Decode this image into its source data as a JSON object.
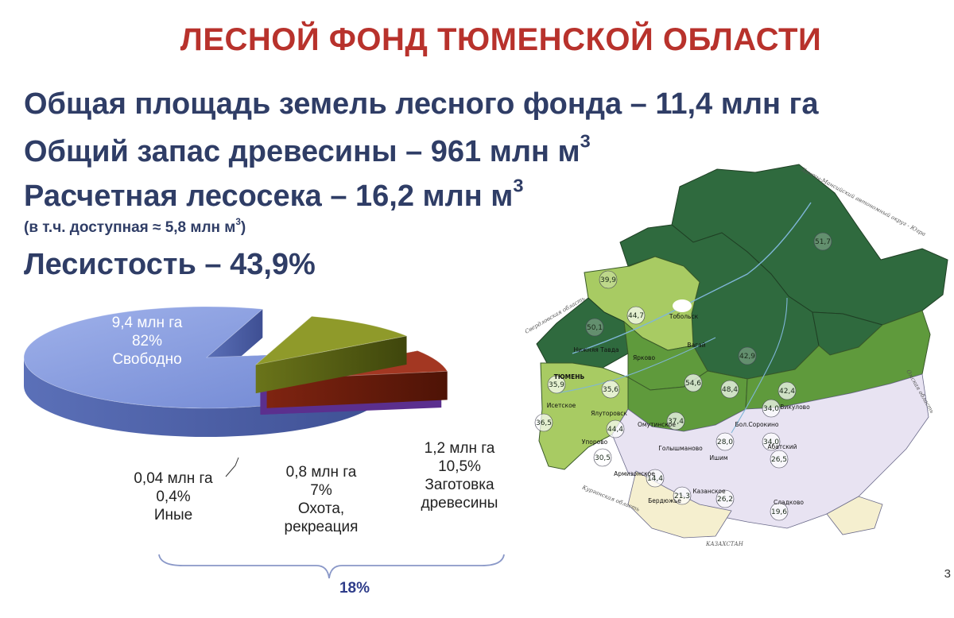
{
  "title": "ЛЕСНОЙ ФОНД ТЮМЕНСКОЙ ОБЛАСТИ",
  "stats": {
    "area": "Общая площадь земель лесного фонда – 11,4 млн га",
    "stock_text": "Общий запас древесины – 961 млн м",
    "stock_sup": "3",
    "cut_text": "Расчетная лесосека – 16,2 млн м",
    "cut_sup": "3",
    "cut_note_text": "(в т.ч. доступная ≈ 5,8 млн м",
    "cut_note_sup": "3",
    "cut_note_close": ")",
    "cover": "Лесистость – 43,9%"
  },
  "chart_data": {
    "type": "pie",
    "style": "3d-exploded",
    "unit": "млн га",
    "slices": [
      {
        "label_line1": "9,4 млн га",
        "label_line2": "82%",
        "label_line3": "Свободно",
        "value": 9.4,
        "percent": 82,
        "color": "#7e95dc"
      },
      {
        "label_line1": "1,2 млн га",
        "label_line2": "10,5%",
        "label_line3": "Заготовка",
        "label_line4": "древесины",
        "value": 1.2,
        "percent": 10.5,
        "color": "#8f9a2a"
      },
      {
        "label_line1": "0,8 млн га",
        "label_line2": "7%",
        "label_line3": "Охота,",
        "label_line4": "рекреация",
        "value": 0.8,
        "percent": 7,
        "color": "#a33722"
      },
      {
        "label_line1": "0,04 млн га",
        "label_line2": "0,4%",
        "label_line3": "Иные",
        "value": 0.04,
        "percent": 0.4,
        "color": "#8a55c8"
      }
    ],
    "bracket_label": "18%"
  },
  "map": {
    "region_labels": [
      "51,7",
      "39,9",
      "44,7",
      "50,1",
      "42,9",
      "35,9",
      "35,6",
      "54,6",
      "48,4",
      "42,4",
      "36,5",
      "44,4",
      "37,4",
      "34,0",
      "28,0",
      "34,0",
      "30,5",
      "14,4",
      "21,3",
      "26,2",
      "26,5",
      "19,6"
    ],
    "city_labels": [
      "Тобольск",
      "ТЮМЕНЬ",
      "Ялуторовск",
      "Ишим",
      "Абатский",
      "Омутинское",
      "Голышманово",
      "Армизонское",
      "Бердюжье",
      "Казанское",
      "Сладково",
      "Упорово",
      "Вагай",
      "Викулово",
      "Бол.Сорокино",
      "Исетское",
      "Ярково",
      "Нижняя Тавда"
    ],
    "edge_labels": [
      "Ханты-Мансийский автономный округ - Югра",
      "Свердловская область",
      "Омская область",
      "Курганская область",
      "КАЗАХСТАН"
    ],
    "colors": {
      "dark": "#2f6a3e",
      "mid": "#5f9a3c",
      "light": "#a8cb63",
      "pale": "#d7e7a6",
      "steppe": "#e8e3f2",
      "cream": "#f5efcf"
    }
  },
  "page_number": "3"
}
